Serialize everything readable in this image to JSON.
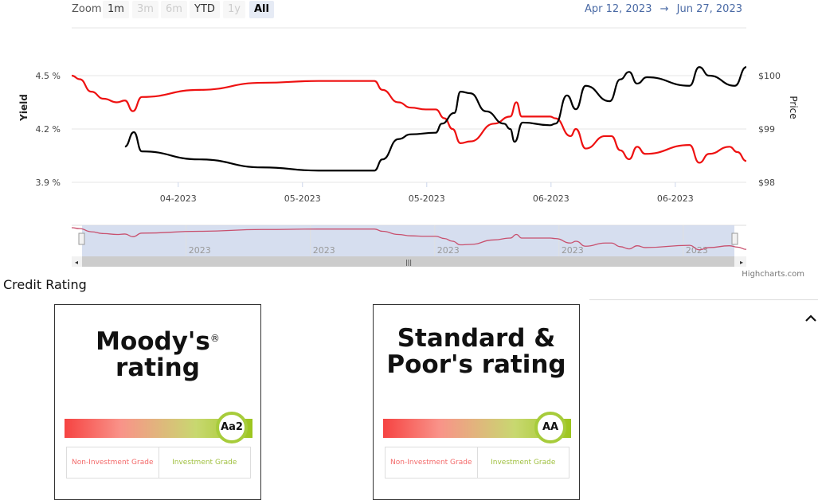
{
  "toolbar": {
    "zoom_label": "Zoom",
    "buttons": [
      {
        "label": "1m",
        "state": "enabled"
      },
      {
        "label": "3m",
        "state": "disabled"
      },
      {
        "label": "6m",
        "state": "disabled"
      },
      {
        "label": "YTD",
        "state": "enabled"
      },
      {
        "label": "1y",
        "state": "disabled"
      },
      {
        "label": "All",
        "state": "selected"
      }
    ],
    "range_from": "Apr 12, 2023",
    "range_arrow": "→",
    "range_to": "Jun 27, 2023"
  },
  "chart_data": {
    "type": "line",
    "x_unit": "days since Apr 12, 2023",
    "xlim": [
      0,
      76
    ],
    "x_ticks": [
      {
        "day": 12,
        "label": "04-2023"
      },
      {
        "day": 26,
        "label": "05-2023"
      },
      {
        "day": 40,
        "label": "05-2023"
      },
      {
        "day": 54,
        "label": "06-2023"
      },
      {
        "day": 68,
        "label": "06-2023"
      }
    ],
    "left_axis": {
      "label": "Yield",
      "ylim": [
        3.9,
        4.5
      ],
      "ticks": [
        {
          "v": 4.5,
          "label": "4.5 %"
        },
        {
          "v": 4.2,
          "label": "4.2 %"
        },
        {
          "v": 3.9,
          "label": "3.9 %"
        }
      ]
    },
    "right_axis": {
      "label": "Price",
      "ylim": [
        98,
        100
      ],
      "ticks": [
        {
          "v": 100,
          "label": "$100"
        },
        {
          "v": 99,
          "label": "$99"
        },
        {
          "v": 98,
          "label": "$98"
        }
      ]
    },
    "series": [
      {
        "name": "Yield",
        "axis": "left",
        "color": "#ee1111",
        "points": [
          [
            0,
            4.5
          ],
          [
            0.9,
            4.48
          ],
          [
            2.2,
            4.41
          ],
          [
            3.6,
            4.37
          ],
          [
            5.1,
            4.35
          ],
          [
            6,
            4.36
          ],
          [
            6.9,
            4.3
          ],
          [
            7.9,
            4.38
          ],
          [
            14.4,
            4.42
          ],
          [
            21.5,
            4.46
          ],
          [
            27.8,
            4.47
          ],
          [
            34.1,
            4.47
          ],
          [
            35,
            4.42
          ],
          [
            36.8,
            4.35
          ],
          [
            38.2,
            4.32
          ],
          [
            39.9,
            4.31
          ],
          [
            41,
            4.31
          ],
          [
            42,
            4.26
          ],
          [
            42.9,
            4.2
          ],
          [
            43.8,
            4.12
          ],
          [
            44.9,
            4.13
          ],
          [
            47.6,
            4.23
          ],
          [
            49.4,
            4.27
          ],
          [
            50.1,
            4.35
          ],
          [
            50.7,
            4.27
          ],
          [
            53.9,
            4.27
          ],
          [
            54.5,
            4.26
          ],
          [
            56.2,
            4.16
          ],
          [
            56.8,
            4.2
          ],
          [
            57.9,
            4.09
          ],
          [
            60.1,
            4.16
          ],
          [
            60.8,
            4.16
          ],
          [
            61.8,
            4.08
          ],
          [
            62.8,
            4.03
          ],
          [
            63.7,
            4.1
          ],
          [
            64.6,
            4.06
          ],
          [
            69.6,
            4.11
          ],
          [
            70.7,
            4.01
          ],
          [
            71.8,
            4.06
          ],
          [
            74.1,
            4.1
          ],
          [
            75,
            4.07
          ],
          [
            76,
            4.02
          ]
        ]
      },
      {
        "name": "Price",
        "axis": "right",
        "color": "#000000",
        "points": [
          [
            6,
            98.67
          ],
          [
            7,
            98.94
          ],
          [
            7.9,
            98.58
          ],
          [
            14.4,
            98.43
          ],
          [
            21.5,
            98.28
          ],
          [
            27.8,
            98.22
          ],
          [
            34.1,
            98.22
          ],
          [
            35,
            98.43
          ],
          [
            36.8,
            98.81
          ],
          [
            38.2,
            98.9
          ],
          [
            41,
            98.93
          ],
          [
            41.7,
            99.1
          ],
          [
            43.1,
            99.3
          ],
          [
            43.8,
            99.7
          ],
          [
            44.9,
            99.67
          ],
          [
            46.7,
            99.33
          ],
          [
            48.7,
            99.1
          ],
          [
            49.4,
            99.0
          ],
          [
            49.9,
            98.76
          ],
          [
            50.8,
            99.12
          ],
          [
            53.9,
            99.07
          ],
          [
            54.5,
            99.1
          ],
          [
            55.8,
            99.63
          ],
          [
            56.8,
            99.37
          ],
          [
            57.9,
            99.81
          ],
          [
            60.6,
            99.52
          ],
          [
            61.8,
            99.93
          ],
          [
            62.8,
            100.07
          ],
          [
            63.7,
            99.85
          ],
          [
            64.8,
            99.97
          ],
          [
            69.6,
            99.81
          ],
          [
            70.7,
            100.16
          ],
          [
            71.8,
            100.0
          ],
          [
            74.7,
            99.81
          ],
          [
            76,
            100.16
          ]
        ]
      }
    ],
    "navigator": {
      "labels": [
        "2023",
        "2023",
        "2023",
        "2023",
        "2023"
      ]
    },
    "credits": "Highcharts.com"
  },
  "section_title": "Credit Rating",
  "ratings": [
    {
      "title_line1": "Moody's",
      "mark": "®",
      "title_line2": "rating",
      "value": "Aa2",
      "fraction": 0.89,
      "low_label": "Non-Investment Grade",
      "high_label": "Investment Grade"
    },
    {
      "title_line1": "Standard &",
      "mark": "",
      "title_line2": "Poor's rating",
      "value": "AA",
      "fraction": 0.89,
      "low_label": "Non-Investment Grade",
      "high_label": "Investment Grade"
    }
  ],
  "collapse_icon": "chevron-up-icon"
}
